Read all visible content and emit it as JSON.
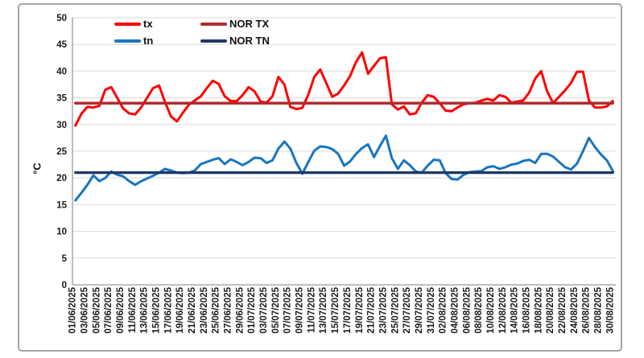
{
  "figure": {
    "border_color": "#a6a6a6",
    "background": "#ffffff",
    "gridline_color": "#d9d9d9",
    "axis_color": "#9b9b9b"
  },
  "legend": {
    "items": [
      {
        "label": "tx",
        "color": "#fe0000"
      },
      {
        "label": "NOR TX",
        "color": "#b02b30"
      },
      {
        "label": "tn",
        "color": "#1776c1"
      },
      {
        "label": "NOR TN",
        "color": "#1f3864"
      }
    ]
  },
  "chart_data": {
    "type": "line",
    "title": "",
    "xlabel": "",
    "ylabel": "°C",
    "ylim": [
      0,
      50
    ],
    "ytick_step": 5,
    "grid": true,
    "legend_position": "top-inside",
    "xtick_every": 2,
    "x_dates": [
      "01/06/2025",
      "02/06/2025",
      "03/06/2025",
      "04/06/2025",
      "05/06/2025",
      "06/06/2025",
      "07/06/2025",
      "08/06/2025",
      "09/06/2025",
      "10/06/2025",
      "11/06/2025",
      "12/06/2025",
      "13/06/2025",
      "14/06/2025",
      "15/06/2025",
      "16/06/2025",
      "17/06/2025",
      "18/06/2025",
      "19/06/2025",
      "20/06/2025",
      "21/06/2025",
      "22/06/2025",
      "23/06/2025",
      "24/06/2025",
      "25/06/2025",
      "26/06/2025",
      "27/06/2025",
      "28/06/2025",
      "29/06/2025",
      "30/06/2025",
      "01/07/2025",
      "02/07/2025",
      "03/07/2025",
      "04/07/2025",
      "05/07/2025",
      "06/07/2025",
      "07/07/2025",
      "08/07/2025",
      "09/07/2025",
      "10/07/2025",
      "11/07/2025",
      "12/07/2025",
      "13/07/2025",
      "14/07/2025",
      "15/07/2025",
      "16/07/2025",
      "17/07/2025",
      "18/07/2025",
      "19/07/2025",
      "20/07/2025",
      "21/07/2025",
      "22/07/2025",
      "23/07/2025",
      "24/07/2025",
      "25/07/2025",
      "26/07/2025",
      "27/07/2025",
      "28/07/2025",
      "29/07/2025",
      "30/07/2025",
      "31/07/2025",
      "01/08/2025",
      "02/08/2025",
      "03/08/2025",
      "04/08/2025",
      "05/08/2025",
      "06/08/2025",
      "07/08/2025",
      "08/08/2025",
      "09/08/2025",
      "10/08/2025",
      "11/08/2025",
      "12/08/2025",
      "13/08/2025",
      "14/08/2025",
      "15/08/2025",
      "16/08/2025",
      "17/08/2025",
      "18/08/2025",
      "19/08/2025",
      "20/08/2025",
      "21/08/2025",
      "22/08/2025",
      "23/08/2025",
      "24/08/2025",
      "25/08/2025",
      "26/08/2025",
      "27/08/2025",
      "28/08/2025",
      "29/08/2025",
      "30/08/2025"
    ],
    "series": [
      {
        "name": "tx",
        "color": "#fe0000",
        "width": 3,
        "values": [
          29.8,
          32.0,
          33.3,
          33.2,
          33.5,
          36.5,
          37.0,
          35.0,
          33.0,
          32.1,
          31.9,
          33.2,
          35.0,
          36.8,
          37.3,
          34.2,
          31.5,
          30.6,
          32.2,
          33.7,
          34.5,
          35.3,
          36.8,
          38.2,
          37.6,
          35.3,
          34.4,
          34.4,
          35.5,
          37.0,
          36.2,
          34.3,
          34.1,
          35.3,
          38.9,
          37.5,
          33.3,
          32.9,
          33.1,
          35.6,
          38.9,
          40.3,
          37.8,
          35.2,
          35.8,
          37.3,
          39.1,
          41.7,
          43.5,
          39.5,
          41.0,
          42.4,
          42.6,
          33.8,
          32.8,
          33.4,
          31.9,
          32.1,
          34.1,
          35.5,
          35.2,
          34.0,
          32.6,
          32.5,
          33.2,
          33.8,
          34.0,
          34.1,
          34.5,
          34.8,
          34.5,
          35.5,
          35.2,
          34.1,
          34.3,
          34.5,
          36.0,
          38.6,
          40.0,
          36.2,
          34.0,
          35.2,
          36.4,
          37.8,
          39.9,
          39.9,
          34.5,
          33.2,
          33.2,
          33.4,
          34.4
        ]
      },
      {
        "name": "tn",
        "color": "#1776c1",
        "width": 3,
        "values": [
          15.8,
          17.2,
          18.7,
          20.5,
          19.4,
          20.0,
          21.2,
          20.6,
          20.3,
          19.4,
          18.7,
          19.4,
          19.9,
          20.4,
          21.0,
          21.7,
          21.4,
          21.0,
          20.9,
          21.0,
          21.4,
          22.6,
          23.0,
          23.4,
          23.7,
          22.6,
          23.5,
          23.0,
          22.4,
          23.0,
          23.8,
          23.7,
          22.8,
          23.3,
          25.5,
          26.8,
          25.5,
          22.8,
          20.8,
          23.0,
          25.1,
          25.9,
          25.8,
          25.4,
          24.5,
          22.3,
          23.1,
          24.5,
          25.6,
          26.3,
          23.9,
          26.0,
          27.9,
          23.7,
          21.7,
          23.3,
          22.4,
          21.2,
          21.0,
          22.3,
          23.4,
          23.3,
          20.9,
          19.8,
          19.7,
          20.6,
          21.1,
          21.2,
          21.3,
          22.0,
          22.2,
          21.7,
          22.0,
          22.5,
          22.7,
          23.2,
          23.4,
          22.8,
          24.5,
          24.5,
          24.0,
          23.0,
          22.0,
          21.6,
          22.7,
          25.0,
          27.5,
          25.8,
          24.4,
          23.3,
          21.3
        ]
      },
      {
        "name": "NOR TX",
        "color": "#b02b30",
        "width": 3.4,
        "constant": 34
      },
      {
        "name": "NOR TN",
        "color": "#1f3864",
        "width": 3.4,
        "constant": 21
      }
    ]
  }
}
